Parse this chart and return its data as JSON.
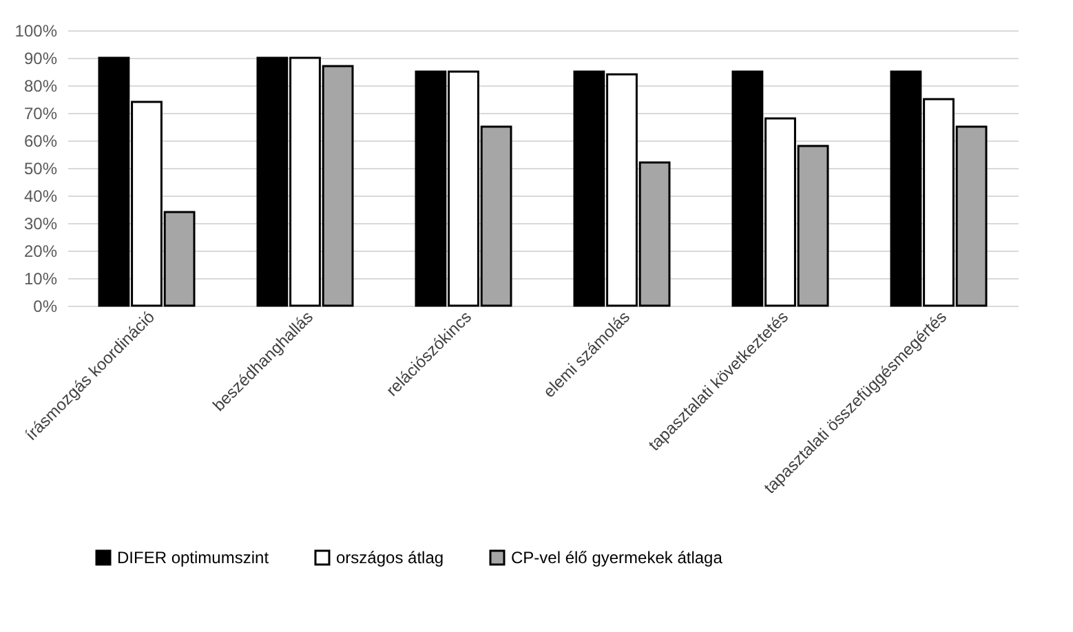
{
  "chart_data": {
    "type": "bar",
    "categories": [
      "írásmozgás koordináció",
      "beszédhanghallás",
      "relációszókincs",
      "elemi számolás",
      "tapasztalati következtetés",
      "tapasztalati összefüggésmegértés"
    ],
    "series": [
      {
        "name": "DIFER optimumszint",
        "color": "#000000",
        "values": [
          90,
          90,
          85,
          85,
          85,
          85
        ]
      },
      {
        "name": "országos átlag",
        "color": "#ffffff",
        "values": [
          74,
          90,
          85,
          84,
          68,
          75
        ]
      },
      {
        "name": "CP-vel élő gyermekek átlaga",
        "color": "#a6a6a6",
        "values": [
          34,
          87,
          65,
          52,
          58,
          65
        ]
      }
    ],
    "ylim": [
      0,
      100
    ],
    "yticks": [
      {
        "value": 0,
        "label": "0%"
      },
      {
        "value": 10,
        "label": "10%"
      },
      {
        "value": 20,
        "label": "20%"
      },
      {
        "value": 30,
        "label": "30%"
      },
      {
        "value": 40,
        "label": "40%"
      },
      {
        "value": 50,
        "label": "50%"
      },
      {
        "value": 60,
        "label": "60%"
      },
      {
        "value": 70,
        "label": "70%"
      },
      {
        "value": 80,
        "label": "80%"
      },
      {
        "value": 90,
        "label": "90%"
      },
      {
        "value": 100,
        "label": "100%"
      }
    ],
    "grid": "y",
    "legend": "bottom"
  }
}
